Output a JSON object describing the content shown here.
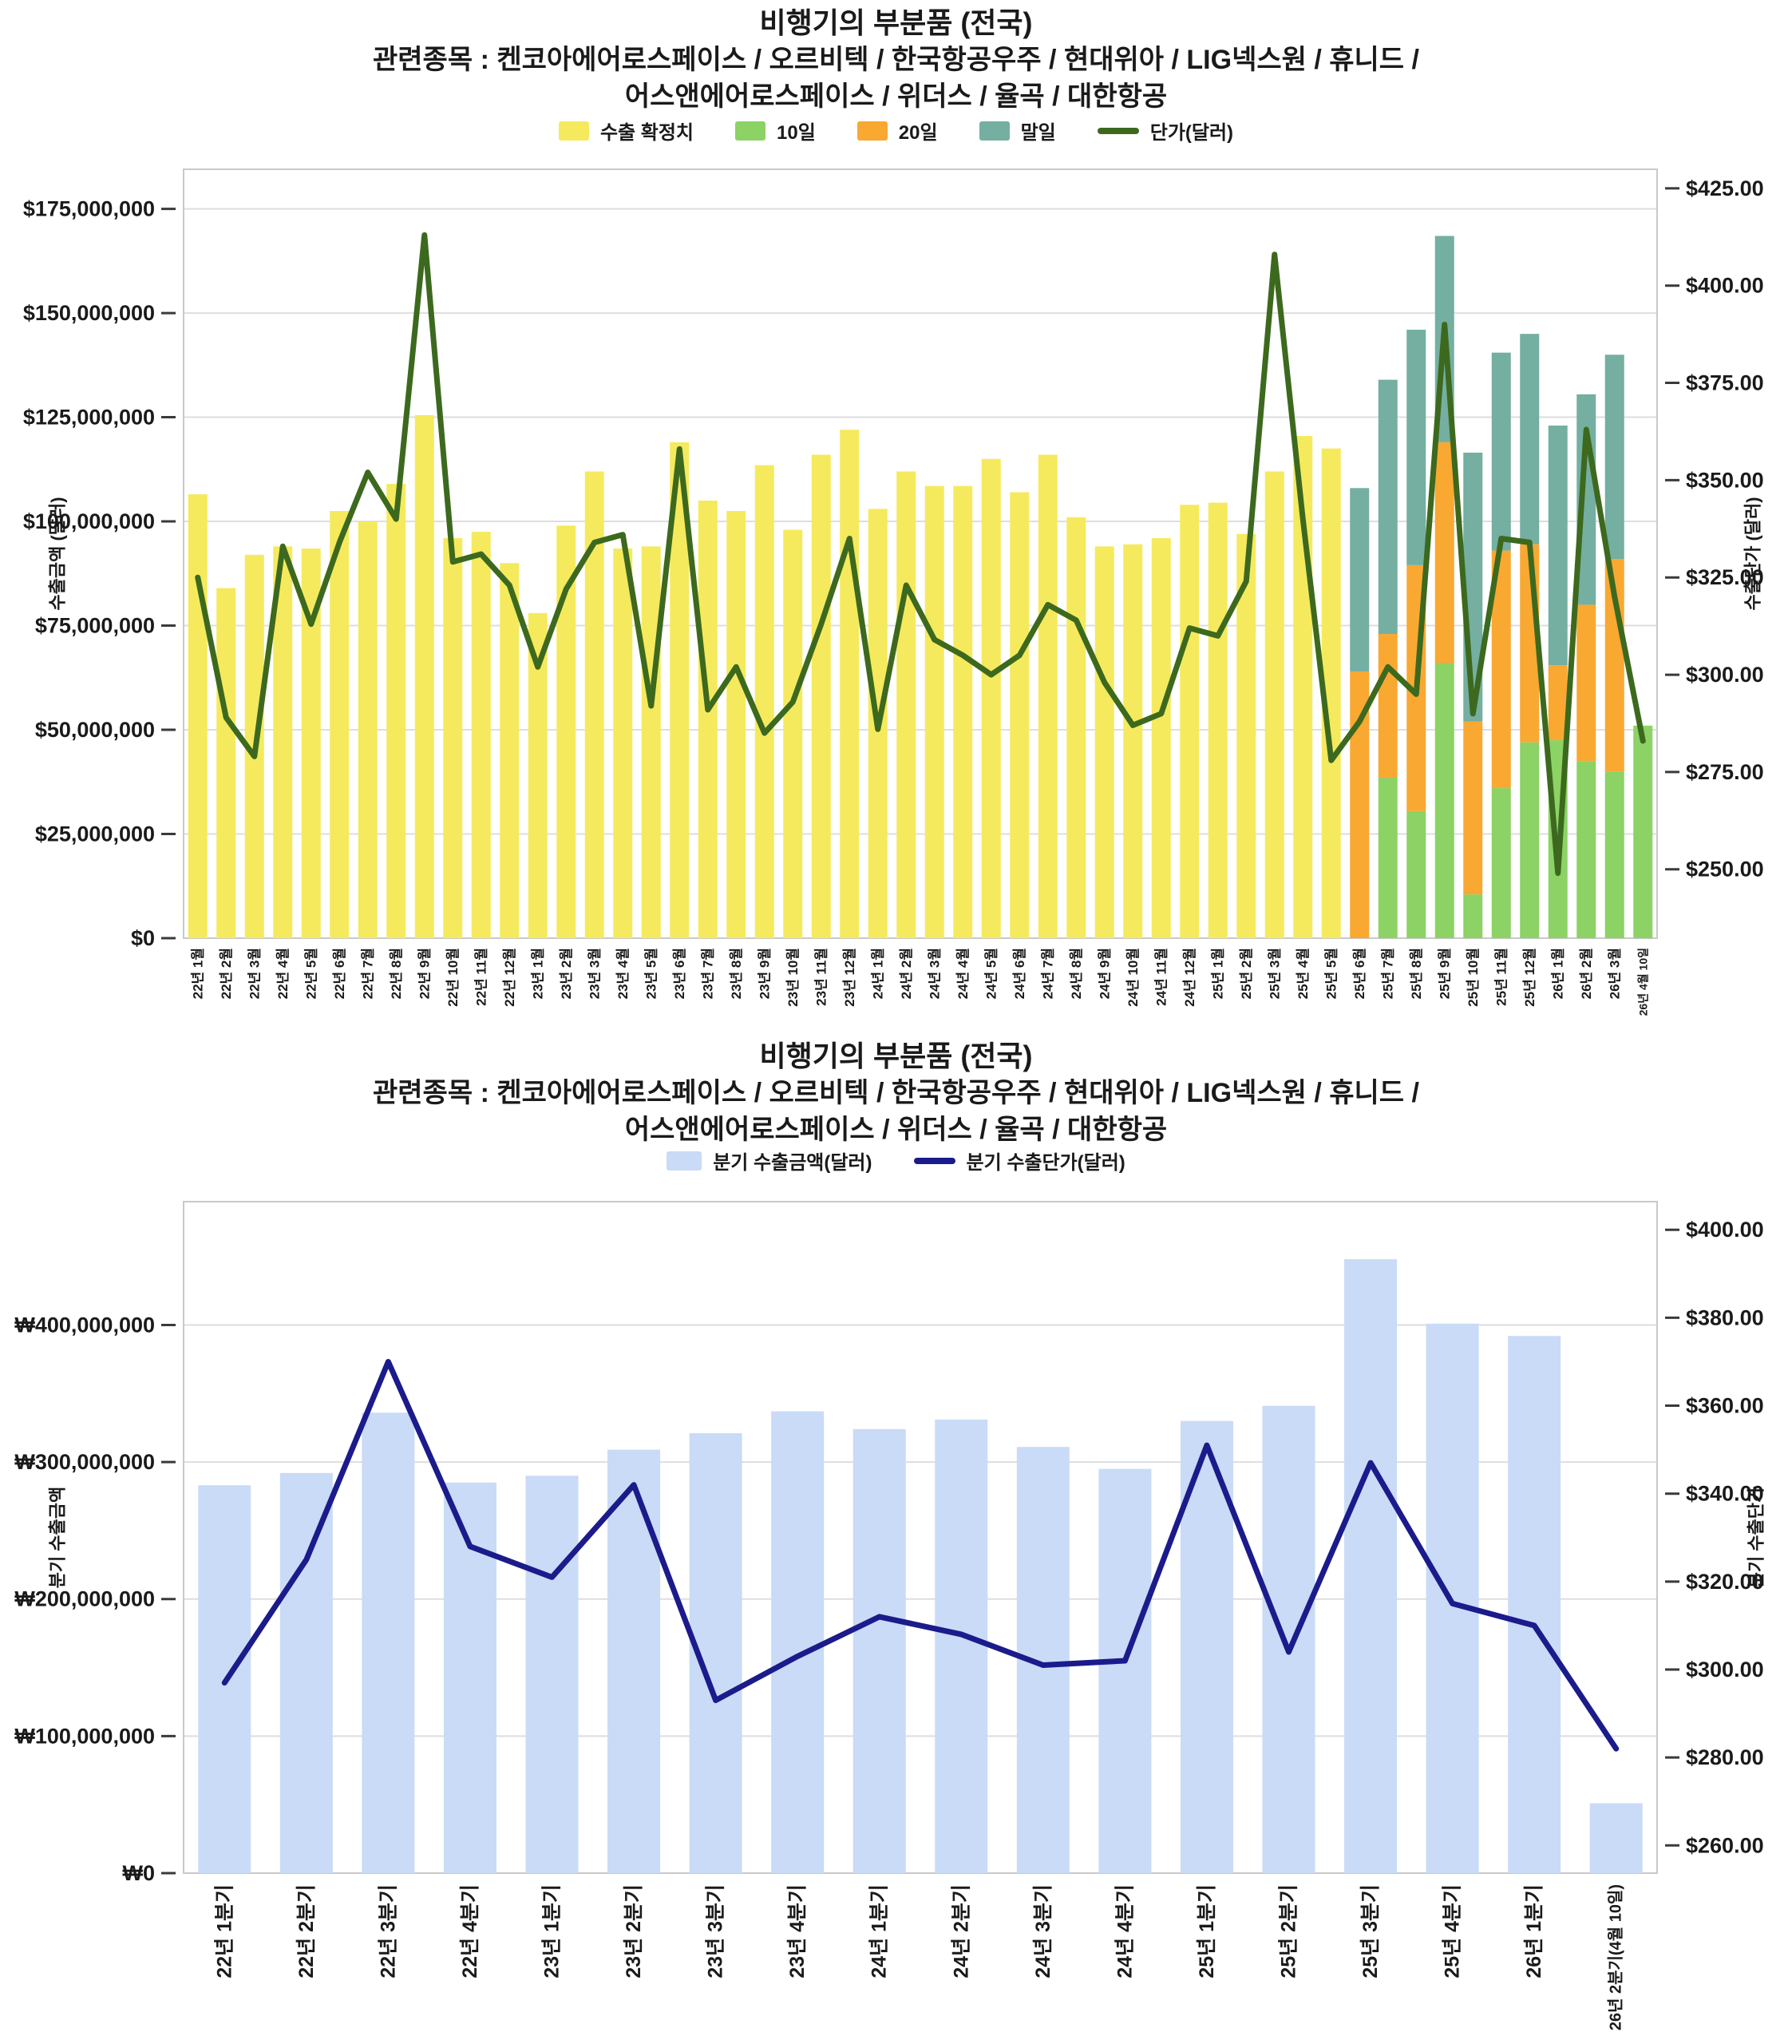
{
  "chart_data": [
    {
      "type": "bar",
      "title": [
        "비행기의 부분품 (전국)",
        "관련종목 : 켄코아에어로스페이스 / 오르비텍 / 한국항공우주 / 현대위아 / LIG넥스원 / 휴니드 /",
        "어스앤에어로스페이스 / 위더스 / 율곡 / 대한항공"
      ],
      "legend_position": "top",
      "grid": true,
      "categories": [
        "22년 1월",
        "22년 2월",
        "22년 3월",
        "22년 4월",
        "22년 5월",
        "22년 6월",
        "22년 7월",
        "22년 8월",
        "22년 9월",
        "22년 10월",
        "22년 11월",
        "22년 12월",
        "23년 1월",
        "23년 2월",
        "23년 3월",
        "23년 4월",
        "23년 5월",
        "23년 6월",
        "23년 7월",
        "23년 8월",
        "23년 9월",
        "23년 10월",
        "23년 11월",
        "23년 12월",
        "24년 1월",
        "24년 2월",
        "24년 3월",
        "24년 4월",
        "24년 5월",
        "24년 6월",
        "24년 7월",
        "24년 8월",
        "24년 9월",
        "24년 10월",
        "24년 11월",
        "24년 12월",
        "25년 1월",
        "25년 2월",
        "25년 3월",
        "25년 4월",
        "25년 5월",
        "25년 6월",
        "25년 7월",
        "25년 8월",
        "25년 9월",
        "25년 10월",
        "25년 11월",
        "25년 12월",
        "26년 1월",
        "26년 2월",
        "26년 3월",
        "26년 4월 10일"
      ],
      "series": [
        {
          "name": "수출 확정치",
          "type": "bar",
          "color": "#F5EA5D",
          "values": [
            106500000,
            84000000,
            92000000,
            94000000,
            93500000,
            102500000,
            100000000,
            109000000,
            125500000,
            96000000,
            97500000,
            90000000,
            78000000,
            99000000,
            112000000,
            93500000,
            94000000,
            119000000,
            105000000,
            102500000,
            113500000,
            98000000,
            116000000,
            122000000,
            103000000,
            112000000,
            108500000,
            108500000,
            115000000,
            107000000,
            116000000,
            101000000,
            94000000,
            94500000,
            96000000,
            104000000,
            104500000,
            97000000,
            112000000,
            120500000,
            117500000,
            0,
            0,
            0,
            0,
            0,
            0,
            0,
            0,
            0,
            0,
            0
          ]
        },
        {
          "name": "10일",
          "type": "bar",
          "color": "#8CD265",
          "values": [
            0,
            0,
            0,
            0,
            0,
            0,
            0,
            0,
            0,
            0,
            0,
            0,
            0,
            0,
            0,
            0,
            0,
            0,
            0,
            0,
            0,
            0,
            0,
            0,
            0,
            0,
            0,
            0,
            0,
            0,
            0,
            0,
            0,
            0,
            0,
            0,
            0,
            0,
            0,
            0,
            0,
            0,
            38500000,
            30500000,
            66000000,
            10500000,
            36000000,
            47000000,
            47500000,
            42500000,
            40000000,
            51000000
          ]
        },
        {
          "name": "20일",
          "type": "bar",
          "color": "#F9A832",
          "values": [
            0,
            0,
            0,
            0,
            0,
            0,
            0,
            0,
            0,
            0,
            0,
            0,
            0,
            0,
            0,
            0,
            0,
            0,
            0,
            0,
            0,
            0,
            0,
            0,
            0,
            0,
            0,
            0,
            0,
            0,
            0,
            0,
            0,
            0,
            0,
            0,
            0,
            0,
            0,
            0,
            0,
            64000000,
            34500000,
            59000000,
            53000000,
            41500000,
            57000000,
            47500000,
            18000000,
            37500000,
            51000000,
            0
          ]
        },
        {
          "name": "말일",
          "type": "bar",
          "color": "#74AFA1",
          "values": [
            0,
            0,
            0,
            0,
            0,
            0,
            0,
            0,
            0,
            0,
            0,
            0,
            0,
            0,
            0,
            0,
            0,
            0,
            0,
            0,
            0,
            0,
            0,
            0,
            0,
            0,
            0,
            0,
            0,
            0,
            0,
            0,
            0,
            0,
            0,
            0,
            0,
            0,
            0,
            0,
            0,
            44000000,
            61000000,
            56500000,
            49500000,
            64500000,
            47500000,
            50500000,
            57500000,
            50500000,
            49000000,
            0
          ]
        },
        {
          "name": "단가(달러)",
          "type": "line",
          "color": "#3C691E",
          "axis": "right",
          "values": [
            325,
            289,
            279,
            333,
            313,
            334,
            352,
            340,
            413,
            329,
            331,
            323,
            302,
            322,
            334,
            336,
            292,
            358,
            291,
            302,
            285,
            293,
            313,
            335,
            286,
            323,
            309,
            305,
            300,
            305,
            318,
            314,
            298,
            287,
            290,
            312,
            310,
            324,
            408,
            340,
            278,
            288,
            302,
            295,
            390,
            290,
            335,
            334,
            249,
            363,
            320,
            283
          ]
        }
      ],
      "left_axis": {
        "title": "수출금액 (달러)",
        "min": 0,
        "max": 184500000,
        "ticks": [
          {
            "v": 0,
            "label": "$0"
          },
          {
            "v": 25000000,
            "label": "$25,000,000"
          },
          {
            "v": 50000000,
            "label": "$50,000,000"
          },
          {
            "v": 75000000,
            "label": "$75,000,000"
          },
          {
            "v": 100000000,
            "label": "$100,000,000"
          },
          {
            "v": 125000000,
            "label": "$125,000,000"
          },
          {
            "v": 150000000,
            "label": "$150,000,000"
          },
          {
            "v": 175000000,
            "label": "$175,000,000"
          }
        ]
      },
      "right_axis": {
        "title": "수출단가 (달러)",
        "min": 232.3,
        "max": 429.9,
        "ticks": [
          {
            "v": 250,
            "label": "$250.00"
          },
          {
            "v": 275,
            "label": "$275.00"
          },
          {
            "v": 300,
            "label": "$300.00"
          },
          {
            "v": 325,
            "label": "$325.00"
          },
          {
            "v": 350,
            "label": "$350.00"
          },
          {
            "v": 375,
            "label": "$375.00"
          },
          {
            "v": 400,
            "label": "$400.00"
          },
          {
            "v": 425,
            "label": "$425.00"
          }
        ]
      }
    },
    {
      "type": "bar",
      "title": [
        "비행기의 부분품 (전국)",
        "관련종목 : 켄코아에어로스페이스 / 오르비텍 / 한국항공우주 / 현대위아 / LIG넥스원 / 휴니드 /",
        "어스앤에어로스페이스 / 위더스 / 율곡 / 대한항공"
      ],
      "legend_position": "top",
      "grid": true,
      "categories": [
        "22년 1분기",
        "22년 2분기",
        "22년 3분기",
        "22년 4분기",
        "23년 1분기",
        "23년 2분기",
        "23년 3분기",
        "23년 4분기",
        "24년 1분기",
        "24년 2분기",
        "24년 3분기",
        "24년 4분기",
        "25년 1분기",
        "25년 2분기",
        "25년 3분기",
        "25년 4분기",
        "26년 1분기",
        "26년 2분기(4월 10일)"
      ],
      "series": [
        {
          "name": "분기 수출금액(달러)",
          "type": "bar",
          "color": "#C9DBF6",
          "values": [
            283000000,
            292000000,
            336000000,
            285000000,
            290000000,
            309000000,
            321000000,
            337000000,
            324000000,
            331000000,
            311000000,
            295000000,
            330000000,
            341000000,
            448000000,
            401000000,
            392000000,
            51000000
          ]
        },
        {
          "name": "분기 수출단가(달러)",
          "type": "line",
          "color": "#1B1B8C",
          "axis": "right",
          "values": [
            297,
            325,
            370,
            328,
            321,
            342,
            293,
            303,
            312,
            308,
            301,
            302,
            351,
            304,
            347,
            315,
            310,
            282
          ]
        }
      ],
      "left_axis": {
        "title": "분기 수출금액",
        "min": 0,
        "max": 490000000,
        "ticks": [
          {
            "v": 0,
            "label": "₩0"
          },
          {
            "v": 100000000,
            "label": "₩100,000,000"
          },
          {
            "v": 200000000,
            "label": "₩200,000,000"
          },
          {
            "v": 300000000,
            "label": "₩300,000,000"
          },
          {
            "v": 400000000,
            "label": "₩400,000,000"
          }
        ]
      },
      "right_axis": {
        "title": "분기 수출단가",
        "min": 253.7,
        "max": 406.4,
        "ticks": [
          {
            "v": 260,
            "label": "$260.00"
          },
          {
            "v": 280,
            "label": "$280.00"
          },
          {
            "v": 300,
            "label": "$300.00"
          },
          {
            "v": 320,
            "label": "$320.00"
          },
          {
            "v": 340,
            "label": "$340.00"
          },
          {
            "v": 360,
            "label": "$360.00"
          },
          {
            "v": 380,
            "label": "$380.00"
          },
          {
            "v": 400,
            "label": "$400.00"
          }
        ]
      }
    }
  ]
}
